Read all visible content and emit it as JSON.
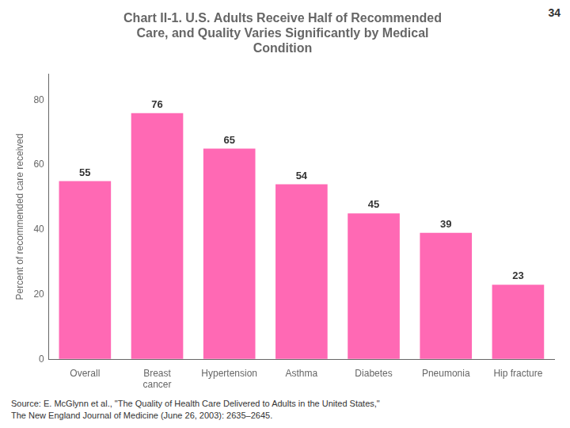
{
  "chart_data": {
    "type": "bar",
    "title": "Chart II-1. U.S. Adults Receive Half of Recommended\nCare, and Quality Varies Significantly by Medical\nCondition",
    "ylabel": "Percent of recommended care received",
    "categories": [
      "Overall",
      "Breast\ncancer",
      "Hypertension",
      "Asthma",
      "Diabetes",
      "Pneumonia",
      "Hip fracture"
    ],
    "values": [
      55,
      76,
      65,
      54,
      45,
      39,
      23
    ],
    "color": "#FF69B4",
    "ylim": [
      0,
      88
    ],
    "yticks": [
      0,
      20,
      40,
      60,
      80
    ],
    "grid": false,
    "data_labels": true,
    "annotations": [
      "34",
      "Source: E. McGlynn et al., \"The Quality of Health Care Delivered to Adults in the United States,\"",
      "The New England Journal of Medicine (June 26, 2003): 2635–2645."
    ]
  }
}
